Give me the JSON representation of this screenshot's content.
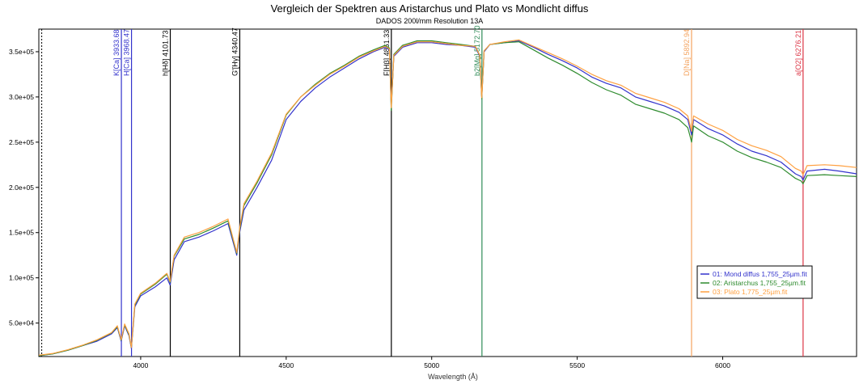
{
  "chart_data": {
    "type": "line",
    "title": "Vergleich der Spektren aus Aristarchus und Plato vs Mondlicht diffus",
    "subtitle": "DADOS 200l/mm Resolution 13A",
    "xlabel": "Wavelength (Å)",
    "ylabel": "",
    "xlim": [
      3650,
      6460
    ],
    "ylim": [
      13000,
      375000
    ],
    "x_ticks": [
      4000,
      4500,
      5000,
      5500,
      6000
    ],
    "y_ticks": [
      {
        "value": 50000,
        "label": "5.0e+04"
      },
      {
        "value": 100000,
        "label": "1.0e+05"
      },
      {
        "value": 150000,
        "label": "1.5e+05"
      },
      {
        "value": 200000,
        "label": "2.0e+05"
      },
      {
        "value": 250000,
        "label": "2.5e+05"
      },
      {
        "value": 300000,
        "label": "3.0e+05"
      },
      {
        "value": 350000,
        "label": "3.5e+05"
      }
    ],
    "grid": false,
    "legend_position": "bottom-right",
    "reference_lines": [
      {
        "x": 3660,
        "label": "",
        "color": "#000000",
        "dashed": true
      },
      {
        "x": 3933.68,
        "label": "K[Ca] 3933.68",
        "color": "#3333cc"
      },
      {
        "x": 3968.47,
        "label": "H[Ca] 3968.47",
        "color": "#3333cc"
      },
      {
        "x": 4101.73,
        "label": "h[Hδ] 4101.73",
        "color": "#000000"
      },
      {
        "x": 4340.47,
        "label": "G'[Hγ] 4340.47",
        "color": "#000000"
      },
      {
        "x": 4861.33,
        "label": "F[Hβ] 4861.33",
        "color": "#000000"
      },
      {
        "x": 5172.7,
        "label": "b2[Mg] 5172.70",
        "color": "#2e8b57"
      },
      {
        "x": 5892.94,
        "label": "D[Na] 5892.94",
        "color": "#f4a460"
      },
      {
        "x": 6276.21,
        "label": "a[O2] 6276.21",
        "color": "#dc3545"
      }
    ],
    "series": [
      {
        "name": "01: Mond diffus 1,755_25µm.fit",
        "color": "#3333cc",
        "x": [
          3650,
          3700,
          3750,
          3800,
          3850,
          3900,
          3920,
          3933,
          3945,
          3960,
          3968,
          3980,
          4000,
          4050,
          4090,
          4101,
          4115,
          4150,
          4200,
          4250,
          4300,
          4330,
          4340,
          4355,
          4400,
          4450,
          4500,
          4550,
          4600,
          4650,
          4700,
          4750,
          4800,
          4840,
          4855,
          4861,
          4870,
          4900,
          4950,
          5000,
          5050,
          5100,
          5150,
          5165,
          5172,
          5180,
          5200,
          5250,
          5300,
          5350,
          5400,
          5450,
          5500,
          5550,
          5600,
          5650,
          5700,
          5750,
          5800,
          5850,
          5880,
          5890,
          5893,
          5900,
          5950,
          6000,
          6050,
          6100,
          6150,
          6200,
          6250,
          6270,
          6276,
          6290,
          6350,
          6400,
          6460
        ],
        "values": [
          14000,
          16000,
          20000,
          25000,
          30000,
          38000,
          45000,
          30000,
          47000,
          36000,
          22000,
          68000,
          80000,
          90000,
          100000,
          92000,
          120000,
          140000,
          145000,
          152000,
          160000,
          125000,
          150000,
          175000,
          200000,
          230000,
          275000,
          295000,
          310000,
          322000,
          332000,
          342000,
          350000,
          355000,
          352000,
          290000,
          345000,
          355000,
          360000,
          360000,
          358000,
          357000,
          355000,
          345000,
          300000,
          350000,
          358000,
          360000,
          362000,
          355000,
          347000,
          340000,
          332000,
          322000,
          315000,
          310000,
          300000,
          295000,
          290000,
          283000,
          275000,
          262000,
          258000,
          275000,
          265000,
          258000,
          248000,
          240000,
          235000,
          228000,
          215000,
          212000,
          208000,
          218000,
          220000,
          218000,
          215000
        ]
      },
      {
        "name": "02: Aristarchus 1,755_25µm.fit",
        "color": "#2e8b2e",
        "x": [
          3650,
          3700,
          3750,
          3800,
          3850,
          3900,
          3920,
          3933,
          3945,
          3960,
          3968,
          3980,
          4000,
          4050,
          4090,
          4101,
          4115,
          4150,
          4200,
          4250,
          4300,
          4330,
          4340,
          4355,
          4400,
          4450,
          4500,
          4550,
          4600,
          4650,
          4700,
          4750,
          4800,
          4840,
          4855,
          4861,
          4870,
          4900,
          4950,
          5000,
          5050,
          5100,
          5150,
          5165,
          5172,
          5180,
          5200,
          5250,
          5300,
          5350,
          5400,
          5450,
          5500,
          5550,
          5600,
          5650,
          5700,
          5750,
          5800,
          5850,
          5880,
          5890,
          5893,
          5900,
          5950,
          6000,
          6050,
          6100,
          6150,
          6200,
          6250,
          6270,
          6276,
          6290,
          6350,
          6400,
          6460
        ],
        "values": [
          14000,
          16000,
          20000,
          25000,
          31000,
          39000,
          46000,
          31000,
          48000,
          37000,
          23000,
          70000,
          82000,
          93000,
          104000,
          95000,
          124000,
          143000,
          148000,
          155000,
          163000,
          127000,
          153000,
          180000,
          205000,
          236000,
          280000,
          300000,
          314000,
          326000,
          335000,
          345000,
          352000,
          357000,
          354000,
          285000,
          347000,
          357000,
          362000,
          362000,
          360000,
          358000,
          356000,
          346000,
          298000,
          351000,
          358000,
          360000,
          361000,
          352000,
          343000,
          335000,
          326000,
          316000,
          308000,
          302000,
          292000,
          287000,
          282000,
          275000,
          266000,
          254000,
          250000,
          268000,
          257000,
          250000,
          240000,
          233000,
          228000,
          222000,
          210000,
          207000,
          204000,
          213000,
          214000,
          213000,
          212000
        ]
      },
      {
        "name": "03: Plato 1,775_25µm.fit",
        "color": "#ffa040",
        "x": [
          3650,
          3700,
          3750,
          3800,
          3850,
          3900,
          3920,
          3933,
          3945,
          3960,
          3968,
          3980,
          4000,
          4050,
          4090,
          4101,
          4115,
          4150,
          4200,
          4250,
          4300,
          4330,
          4340,
          4355,
          4400,
          4450,
          4500,
          4550,
          4600,
          4650,
          4700,
          4750,
          4800,
          4840,
          4855,
          4861,
          4870,
          4900,
          4950,
          5000,
          5050,
          5100,
          5150,
          5165,
          5172,
          5180,
          5200,
          5250,
          5300,
          5350,
          5400,
          5450,
          5500,
          5550,
          5600,
          5650,
          5700,
          5750,
          5800,
          5850,
          5880,
          5890,
          5893,
          5900,
          5950,
          6000,
          6050,
          6100,
          6150,
          6200,
          6250,
          6270,
          6276,
          6290,
          6350,
          6400,
          6460
        ],
        "values": [
          14500,
          16500,
          20500,
          25500,
          31500,
          39500,
          47000,
          31500,
          49000,
          38000,
          23000,
          71000,
          83000,
          94000,
          105000,
          96000,
          125000,
          145000,
          150000,
          157000,
          165000,
          128000,
          155000,
          182000,
          207000,
          238000,
          281000,
          300000,
          313000,
          325000,
          334000,
          344000,
          351000,
          356000,
          353000,
          288000,
          346000,
          356000,
          361000,
          361000,
          359000,
          357000,
          356000,
          346000,
          299000,
          351000,
          358000,
          361000,
          363000,
          356000,
          349000,
          342000,
          334000,
          325000,
          318000,
          313000,
          304000,
          299000,
          294000,
          287000,
          279000,
          266000,
          262000,
          279000,
          270000,
          263000,
          253000,
          246000,
          241000,
          234000,
          221000,
          218000,
          214000,
          224000,
          225000,
          224000,
          222000
        ]
      }
    ]
  }
}
